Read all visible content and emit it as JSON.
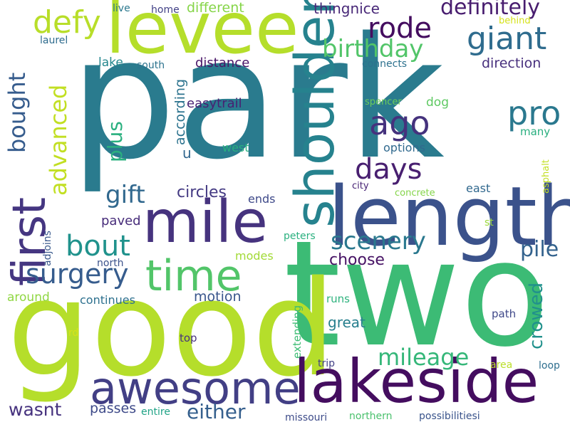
{
  "words": [
    {
      "text": "park",
      "color": "#2a7b8e",
      "vertical": false
    },
    {
      "text": "two",
      "color": "#3cbb75",
      "vertical": false
    },
    {
      "text": "good",
      "color": "#b5de2b",
      "vertical": false
    },
    {
      "text": "levee",
      "color": "#b5de2b",
      "vertical": false
    },
    {
      "text": "length",
      "color": "#3b528b",
      "vertical": false
    },
    {
      "text": "mile",
      "color": "#46337e",
      "vertical": false
    },
    {
      "text": "lakeside",
      "color": "#440d5f",
      "vertical": false
    },
    {
      "text": "shoulder",
      "color": "#26828e",
      "vertical": true
    },
    {
      "text": "awesome",
      "color": "#423f85",
      "vertical": false
    },
    {
      "text": "time",
      "color": "#52c569",
      "vertical": false
    },
    {
      "text": "first",
      "color": "#453681",
      "vertical": true
    },
    {
      "text": "surgery",
      "color": "#365c8d",
      "vertical": false
    },
    {
      "text": "days",
      "color": "#481f70",
      "vertical": false
    },
    {
      "text": "ago",
      "color": "#45327d",
      "vertical": false
    },
    {
      "text": "pro",
      "color": "#2a788e",
      "vertical": false
    },
    {
      "text": "giant",
      "color": "#2f6c8e",
      "vertical": false
    },
    {
      "text": "birthday",
      "color": "#52c569",
      "vertical": false
    },
    {
      "text": "rode",
      "color": "#440d5f",
      "vertical": false
    },
    {
      "text": "defy",
      "color": "#b8de29",
      "vertical": false
    },
    {
      "text": "bout",
      "color": "#20928c",
      "vertical": false
    },
    {
      "text": "gift",
      "color": "#31688e",
      "vertical": false
    },
    {
      "text": "scenery",
      "color": "#2a788e",
      "vertical": false
    },
    {
      "text": "bought",
      "color": "#365c8d",
      "vertical": true
    },
    {
      "text": "advanced",
      "color": "#c2df23",
      "vertical": true
    },
    {
      "text": "definitely",
      "color": "#481d6f",
      "vertical": false
    },
    {
      "text": "mileage",
      "color": "#35b779",
      "vertical": false
    },
    {
      "text": "either",
      "color": "#355f8d",
      "vertical": false
    },
    {
      "text": "pile",
      "color": "#33628d",
      "vertical": false
    },
    {
      "text": "crowed",
      "color": "#21918c",
      "vertical": true
    },
    {
      "text": "plus",
      "color": "#2ab07f",
      "vertical": true
    },
    {
      "text": "wasnt",
      "color": "#46327e",
      "vertical": false
    },
    {
      "text": "choose",
      "color": "#471365",
      "vertical": false
    },
    {
      "text": "circles",
      "color": "#443a83",
      "vertical": false
    },
    {
      "text": "great",
      "color": "#277f8e",
      "vertical": false
    },
    {
      "text": "thingnice",
      "color": "#482878",
      "vertical": false
    },
    {
      "text": "different",
      "color": "#86d549",
      "vertical": false
    },
    {
      "text": "passes",
      "color": "#3e4a89",
      "vertical": false
    },
    {
      "text": "motion",
      "color": "#39568c",
      "vertical": false
    },
    {
      "text": "paved",
      "color": "#472c7a",
      "vertical": false
    },
    {
      "text": "easytrail",
      "color": "#482173",
      "vertical": false
    },
    {
      "text": "distance",
      "color": "#481467",
      "vertical": false
    },
    {
      "text": "direction",
      "color": "#472f7d",
      "vertical": false
    },
    {
      "text": "according",
      "color": "#2c738e",
      "vertical": true
    },
    {
      "text": "u",
      "color": "#31678e",
      "vertical": false
    },
    {
      "text": "lake",
      "color": "#24878e",
      "vertical": false
    },
    {
      "text": "options",
      "color": "#30698e",
      "vertical": false
    },
    {
      "text": "dog",
      "color": "#5ec962",
      "vertical": false
    },
    {
      "text": "many",
      "color": "#29af7f",
      "vertical": false
    },
    {
      "text": "west",
      "color": "#29af7f",
      "vertical": false
    },
    {
      "text": "ends",
      "color": "#3e4989",
      "vertical": false
    },
    {
      "text": "east",
      "color": "#31688e",
      "vertical": false
    },
    {
      "text": "modes",
      "color": "#a2da37",
      "vertical": false
    },
    {
      "text": "around",
      "color": "#90d743",
      "vertical": false
    },
    {
      "text": "continues",
      "color": "#2d708e",
      "vertical": false
    },
    {
      "text": "extending",
      "color": "#3dbc74",
      "vertical": true
    },
    {
      "text": "runs",
      "color": "#2db27d",
      "vertical": false
    },
    {
      "text": "path",
      "color": "#3f4889",
      "vertical": false
    },
    {
      "text": "top",
      "color": "#46327e",
      "vertical": false
    },
    {
      "text": "trip",
      "color": "#424186",
      "vertical": false
    },
    {
      "text": "area",
      "color": "#bade28",
      "vertical": false
    },
    {
      "text": "loop",
      "color": "#2e6e8e",
      "vertical": false
    },
    {
      "text": "missouri",
      "color": "#3e4c8a",
      "vertical": false
    },
    {
      "text": "northern",
      "color": "#4ac16d",
      "vertical": false
    },
    {
      "text": "possibilitiesi",
      "color": "#3a548c",
      "vertical": false
    },
    {
      "text": "entire",
      "color": "#20a386",
      "vertical": false
    },
    {
      "text": "rd",
      "color": "#d8e219",
      "vertical": false
    },
    {
      "text": "north",
      "color": "#3b528b",
      "vertical": false
    },
    {
      "text": "adjoins",
      "color": "#38588c",
      "vertical": true
    },
    {
      "text": "peters",
      "color": "#2ab07f",
      "vertical": false
    },
    {
      "text": "st",
      "color": "#9bd93c",
      "vertical": false
    },
    {
      "text": "asphalt",
      "color": "#c2df23",
      "vertical": true
    },
    {
      "text": "concrete",
      "color": "#85d54a",
      "vertical": false
    },
    {
      "text": "city",
      "color": "#482475",
      "vertical": false
    },
    {
      "text": "connects",
      "color": "#2d718e",
      "vertical": false
    },
    {
      "text": "spencer",
      "color": "#6ccd5a",
      "vertical": false
    },
    {
      "text": "behind",
      "color": "#d5e21a",
      "vertical": false
    },
    {
      "text": "south",
      "color": "#2c738e",
      "vertical": false
    },
    {
      "text": "home",
      "color": "#424186",
      "vertical": false
    },
    {
      "text": "live",
      "color": "#2a788e",
      "vertical": false
    },
    {
      "text": "laurel",
      "color": "#2f6c8e",
      "vertical": false
    }
  ]
}
